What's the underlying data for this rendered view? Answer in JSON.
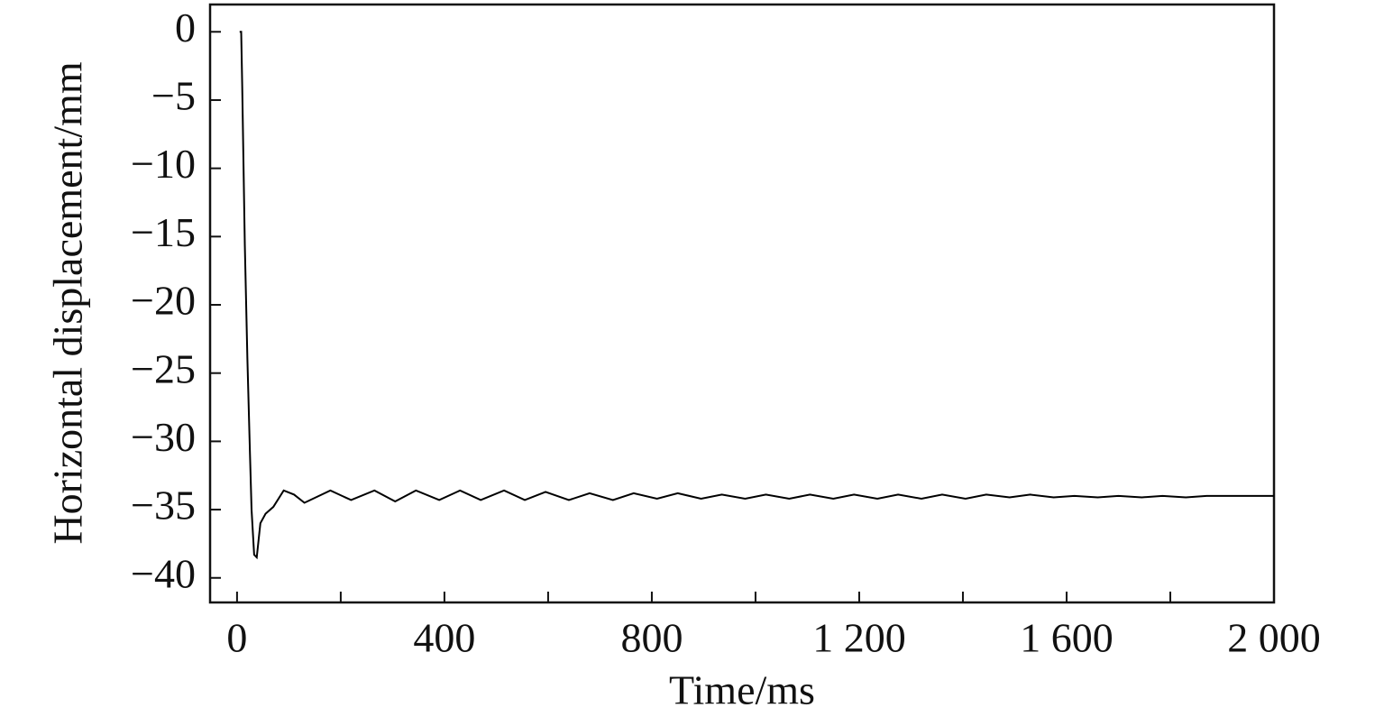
{
  "chart_data": {
    "type": "line",
    "x_label": "Time/ms",
    "y_label": "Horizontal displacement/mm",
    "color": "#000000",
    "x": [
      5,
      8,
      10,
      15,
      20,
      25,
      28,
      33,
      38,
      45,
      55,
      70,
      90,
      110,
      130,
      180,
      220,
      265,
      305,
      345,
      390,
      430,
      470,
      515,
      555,
      595,
      640,
      680,
      725,
      765,
      810,
      850,
      895,
      935,
      980,
      1020,
      1065,
      1105,
      1150,
      1190,
      1235,
      1275,
      1320,
      1360,
      1405,
      1445,
      1490,
      1530,
      1575,
      1615,
      1660,
      1700,
      1745,
      1785,
      1830,
      1870,
      1915,
      1960,
      2000
    ],
    "values": [
      0,
      0,
      -4,
      -15.6,
      -24,
      -31,
      -35,
      -38.3,
      -38.5,
      -36,
      -35.3,
      -34.8,
      -33.6,
      -33.9,
      -34.5,
      -33.6,
      -34.3,
      -33.6,
      -34.4,
      -33.6,
      -34.3,
      -33.6,
      -34.3,
      -33.6,
      -34.3,
      -33.7,
      -34.3,
      -33.8,
      -34.3,
      -33.8,
      -34.2,
      -33.8,
      -34.2,
      -33.9,
      -34.2,
      -33.9,
      -34.2,
      -33.9,
      -34.2,
      -33.9,
      -34.2,
      -33.9,
      -34.2,
      -33.9,
      -34.2,
      -33.9,
      -34.1,
      -33.9,
      -34.1,
      -34,
      -34.1,
      -34,
      -34.1,
      -34,
      -34.1,
      -34,
      -34,
      -34,
      -34
    ],
    "xlim": [
      -52,
      2000
    ],
    "ylim": [
      -41.8,
      2
    ],
    "xticks": [
      0,
      400,
      800,
      {
        "value": 1200,
        "label": "1 200"
      },
      {
        "value": 1600,
        "label": "1 600"
      },
      {
        "value": 2000,
        "label": "2 000"
      }
    ],
    "xminorticks": [
      200,
      600,
      1000,
      1400,
      1800
    ],
    "yticks": [
      0,
      {
        "value": -5,
        "label": "−5"
      },
      {
        "value": -10,
        "label": "−10"
      },
      {
        "value": -15,
        "label": "−15"
      },
      {
        "value": -20,
        "label": "−20"
      },
      {
        "value": -25,
        "label": "−25"
      },
      {
        "value": -30,
        "label": "−30"
      },
      {
        "value": -35,
        "label": "−35"
      },
      {
        "value": -40,
        "label": "−40"
      }
    ],
    "grid": false
  }
}
